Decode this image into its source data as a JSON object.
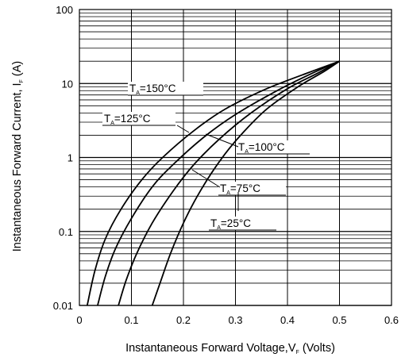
{
  "chart_data": {
    "type": "line",
    "xlabel": "Instantaneous Forward Voltage,V",
    "xlabel_sub": "F",
    "xlabel_suffix": "(Volts)",
    "ylabel": "Instantaneous Forward Current, I",
    "ylabel_sub": "F",
    "ylabel_suffix": "(A)",
    "xlim": [
      0,
      0.6
    ],
    "ylim": [
      0.01,
      100
    ],
    "y_scale": "log",
    "grid": true,
    "x_ticks": [
      "0",
      "0.1",
      "0.2",
      "0.3",
      "0.4",
      "0.5",
      "0.6"
    ],
    "y_ticks": [
      {
        "value": 100,
        "label": "100"
      },
      {
        "value": 10,
        "label": "10"
      },
      {
        "value": 1,
        "label": "1"
      },
      {
        "value": 0.1,
        "label": "0.1"
      },
      {
        "value": 0.01,
        "label": "0.01"
      }
    ],
    "series": [
      {
        "name": "T=150°C",
        "label_sub": "A",
        "label_main": "T",
        "label_rest": "=150°C",
        "points": [
          [
            0.015,
            0.01
          ],
          [
            0.03,
            0.03
          ],
          [
            0.05,
            0.08
          ],
          [
            0.08,
            0.2
          ],
          [
            0.12,
            0.5
          ],
          [
            0.16,
            1.0
          ],
          [
            0.22,
            2.3
          ],
          [
            0.28,
            4.5
          ],
          [
            0.36,
            8.5
          ],
          [
            0.44,
            14
          ],
          [
            0.5,
            20
          ]
        ]
      },
      {
        "name": "T=125°C",
        "label_sub": "A",
        "label_main": "T",
        "label_rest": "=125°C",
        "points": [
          [
            0.035,
            0.01
          ],
          [
            0.05,
            0.025
          ],
          [
            0.07,
            0.06
          ],
          [
            0.1,
            0.15
          ],
          [
            0.14,
            0.4
          ],
          [
            0.18,
            0.8
          ],
          [
            0.24,
            1.9
          ],
          [
            0.3,
            3.8
          ],
          [
            0.38,
            8.0
          ],
          [
            0.45,
            14
          ],
          [
            0.5,
            20
          ]
        ]
      },
      {
        "name": "T=100°C",
        "label_sub": "A",
        "label_main": "T",
        "label_rest": "=100°C",
        "points": [
          [
            0.075,
            0.01
          ],
          [
            0.09,
            0.022
          ],
          [
            0.11,
            0.05
          ],
          [
            0.14,
            0.13
          ],
          [
            0.18,
            0.35
          ],
          [
            0.22,
            0.8
          ],
          [
            0.27,
            1.8
          ],
          [
            0.33,
            4.0
          ],
          [
            0.4,
            8.5
          ],
          [
            0.46,
            14
          ],
          [
            0.5,
            20
          ]
        ]
      },
      {
        "name": "T=75°C",
        "label_sub": "A",
        "label_main": "T",
        "label_rest": "=75°C",
        "points": [
          [
            0.14,
            0.01
          ],
          [
            0.155,
            0.02
          ],
          [
            0.175,
            0.05
          ],
          [
            0.2,
            0.13
          ],
          [
            0.23,
            0.33
          ],
          [
            0.27,
            0.9
          ],
          [
            0.31,
            2.0
          ],
          [
            0.36,
            4.5
          ],
          [
            0.42,
            9.0
          ],
          [
            0.47,
            14.5
          ],
          [
            0.5,
            20
          ]
        ]
      },
      {
        "name": "T=25°C",
        "label_sub": "A",
        "label_main": "T",
        "label_rest": "=25°C",
        "points": []
      }
    ]
  }
}
